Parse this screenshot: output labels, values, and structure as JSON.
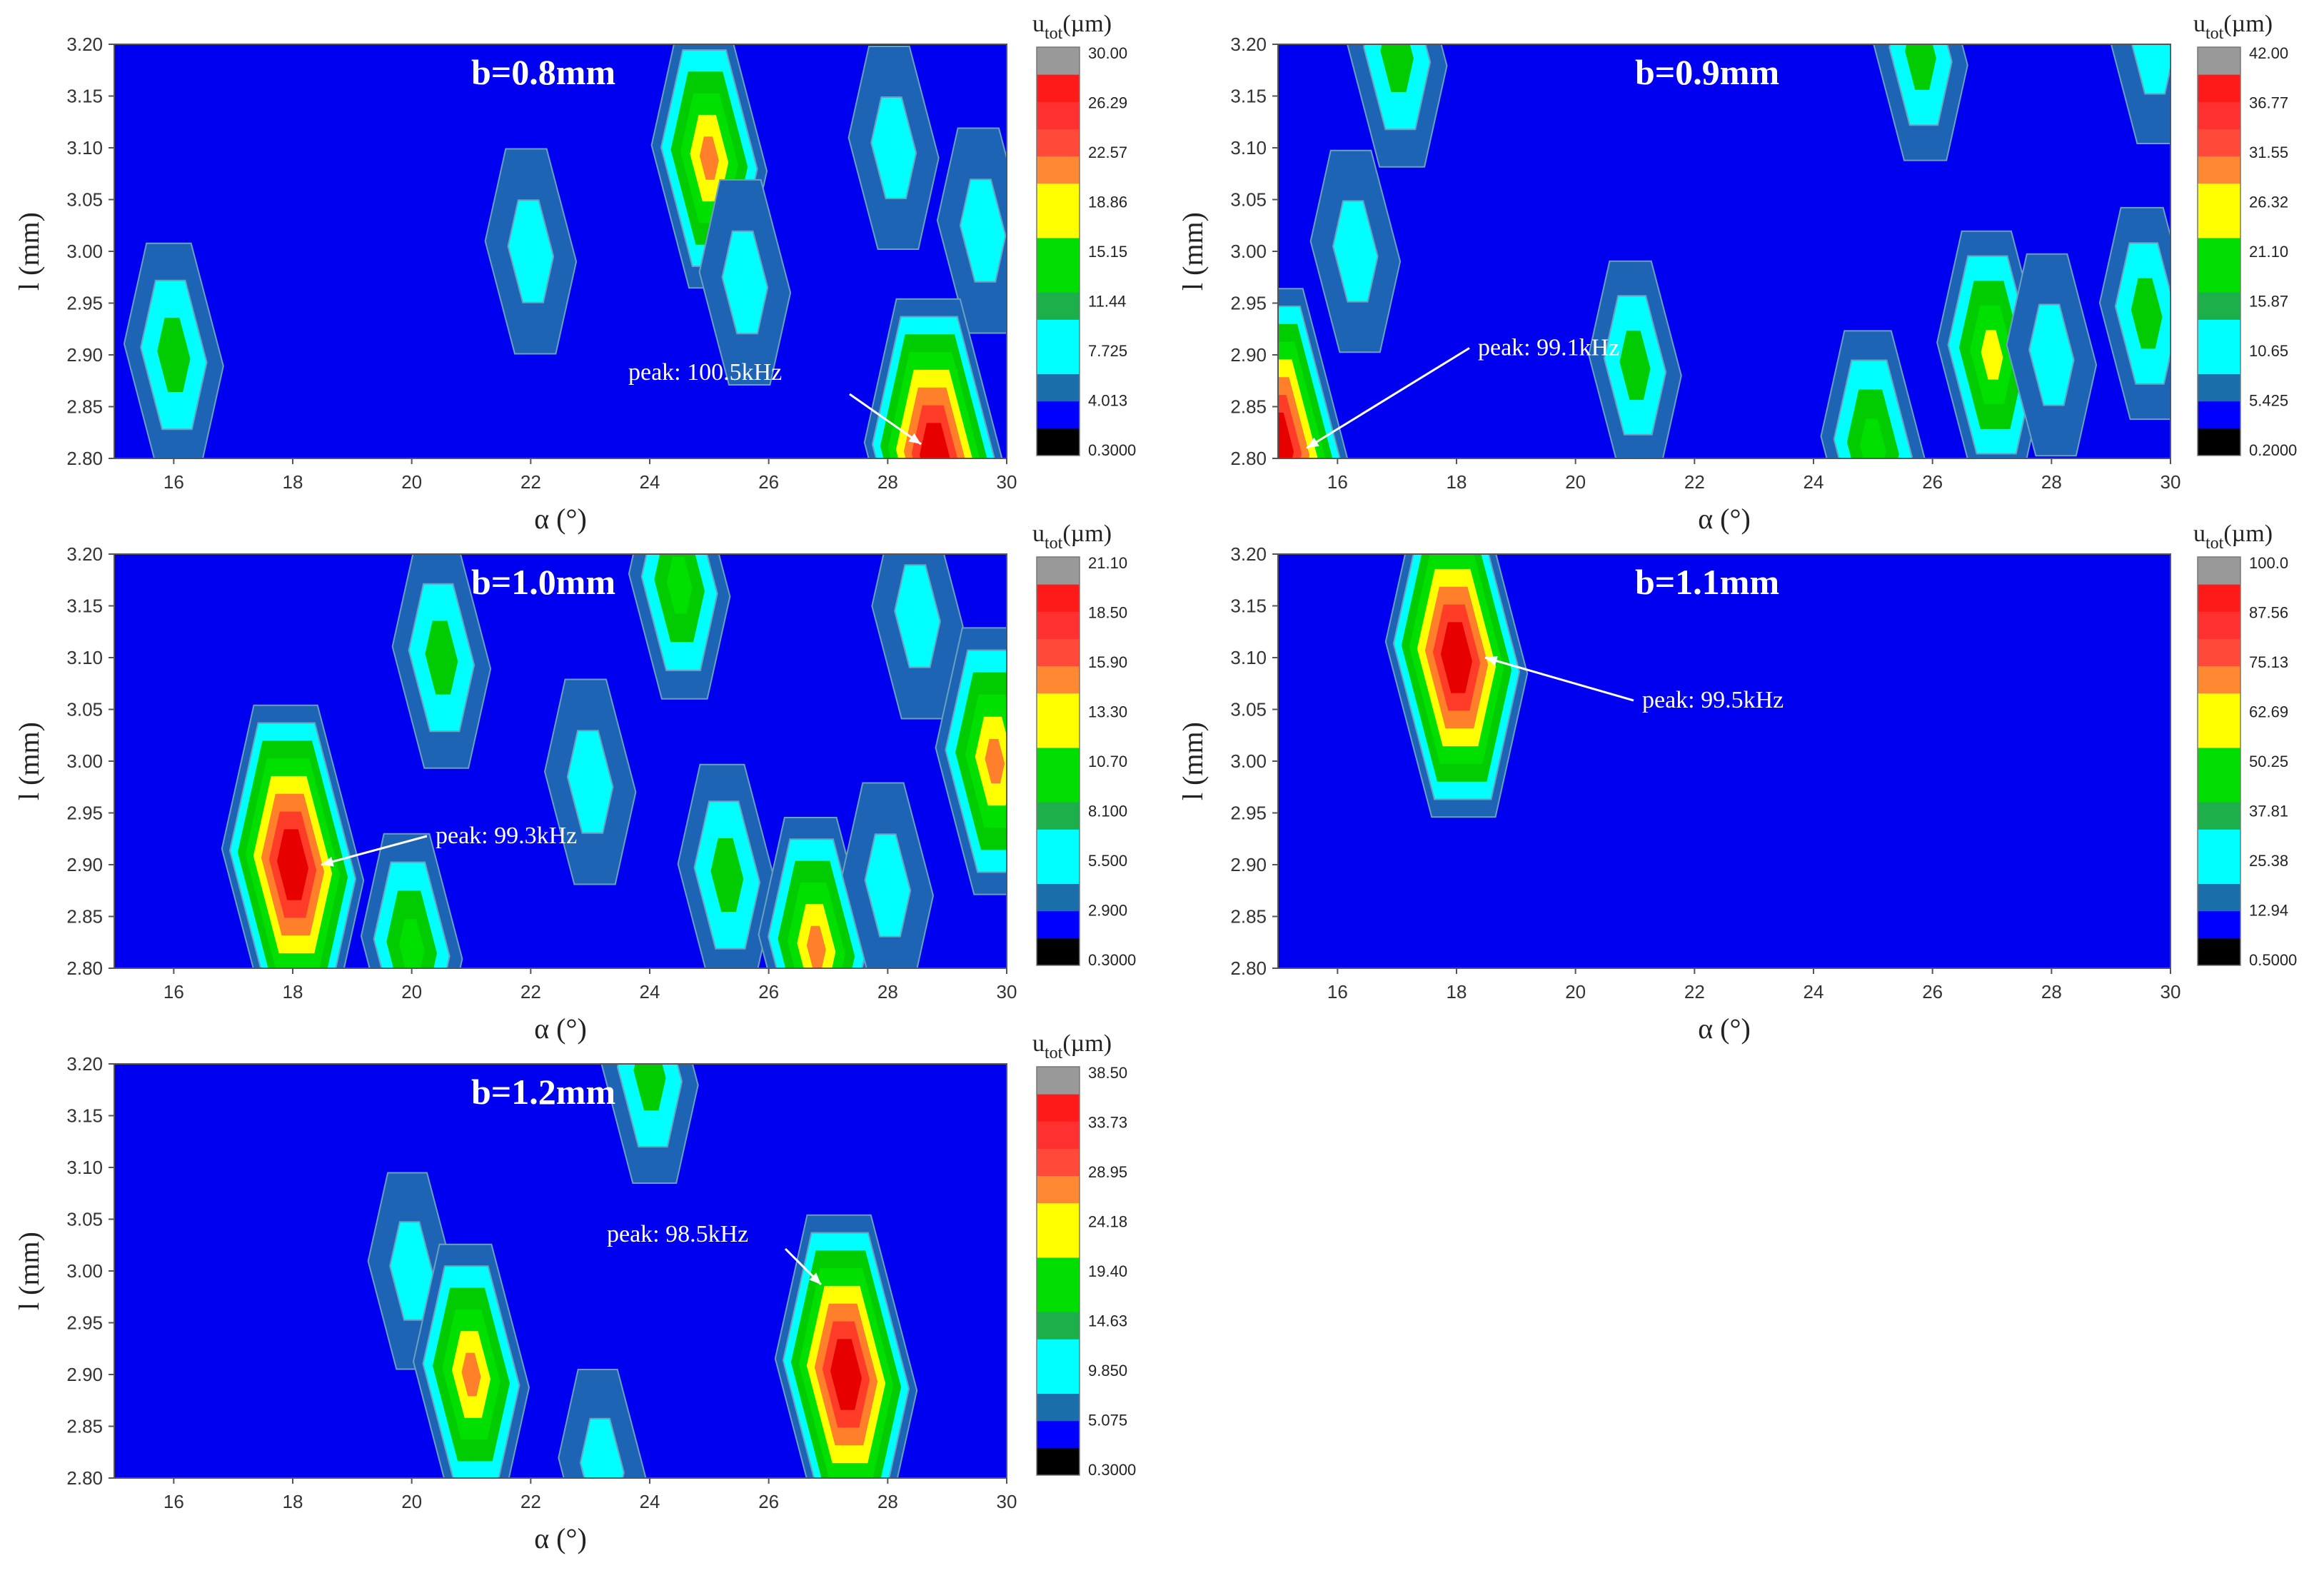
{
  "chart_data": [
    {
      "type": "heatmap",
      "title": "b=0.8mm",
      "xlabel": "α (°)",
      "ylabel": "l (mm)",
      "xlim": [
        15,
        30
      ],
      "ylim": [
        2.8,
        3.2
      ],
      "xticks": [
        "16",
        "18",
        "20",
        "22",
        "24",
        "26",
        "28",
        "30"
      ],
      "yticks": [
        "2.80",
        "2.85",
        "2.90",
        "2.95",
        "3.00",
        "3.05",
        "3.10",
        "3.15",
        "3.20"
      ],
      "colorbar_title": "u_tot(µm)",
      "colorbar_ticks": [
        "30.00",
        "26.29",
        "22.57",
        "18.86",
        "15.15",
        "11.44",
        "7.725",
        "4.013",
        "0.3000"
      ],
      "annotation": {
        "text": "peak: 100.5kHz",
        "x": 28.8,
        "y": 2.8
      },
      "hotspots": [
        {
          "x": 16.0,
          "y": 2.9,
          "value": 9.0
        },
        {
          "x": 22.0,
          "y": 3.0,
          "value": 5.0
        },
        {
          "x": 25.0,
          "y": 3.09,
          "value": 17.0
        },
        {
          "x": 25.6,
          "y": 2.97,
          "value": 5.0
        },
        {
          "x": 28.1,
          "y": 3.1,
          "value": 4.5
        },
        {
          "x": 29.6,
          "y": 3.02,
          "value": 5.0
        },
        {
          "x": 28.8,
          "y": 2.8,
          "value": 30.0
        }
      ]
    },
    {
      "type": "heatmap",
      "title": "b=0.9mm",
      "xlabel": "α (°)",
      "ylabel": "l (mm)",
      "xlim": [
        15,
        30
      ],
      "ylim": [
        2.8,
        3.2
      ],
      "xticks": [
        "16",
        "18",
        "20",
        "22",
        "24",
        "26",
        "28",
        "30"
      ],
      "yticks": [
        "2.80",
        "2.85",
        "2.90",
        "2.95",
        "3.00",
        "3.05",
        "3.10",
        "3.15",
        "3.20"
      ],
      "colorbar_title": "u_tot(µm)",
      "colorbar_ticks": [
        "42.00",
        "36.77",
        "31.55",
        "26.32",
        "21.10",
        "15.87",
        "10.65",
        "5.425",
        "0.2000"
      ],
      "annotation": {
        "text": "peak: 99.1kHz",
        "x": 15.0,
        "y": 2.81
      },
      "hotspots": [
        {
          "x": 17.0,
          "y": 3.19,
          "value": 13.0
        },
        {
          "x": 25.8,
          "y": 3.19,
          "value": 9.0
        },
        {
          "x": 29.7,
          "y": 3.2,
          "value": 5.0
        },
        {
          "x": 16.3,
          "y": 3.0,
          "value": 6.0
        },
        {
          "x": 21.0,
          "y": 2.89,
          "value": 8.0
        },
        {
          "x": 25.0,
          "y": 2.81,
          "value": 16.0
        },
        {
          "x": 27.0,
          "y": 2.9,
          "value": 20.0
        },
        {
          "x": 28.0,
          "y": 2.9,
          "value": 6.0
        },
        {
          "x": 29.6,
          "y": 2.94,
          "value": 9.0
        },
        {
          "x": 15.0,
          "y": 2.81,
          "value": 42.0
        }
      ]
    },
    {
      "type": "heatmap",
      "title": "b=1.0mm",
      "xlabel": "α (°)",
      "ylabel": "l (mm)",
      "xlim": [
        15,
        30
      ],
      "ylim": [
        2.8,
        3.2
      ],
      "xticks": [
        "16",
        "18",
        "20",
        "22",
        "24",
        "26",
        "28",
        "30"
      ],
      "yticks": [
        "2.80",
        "2.85",
        "2.90",
        "2.95",
        "3.00",
        "3.05",
        "3.10",
        "3.15",
        "3.20"
      ],
      "colorbar_title": "u_tot(µm)",
      "colorbar_ticks": [
        "21.10",
        "18.50",
        "15.90",
        "13.30",
        "10.70",
        "8.100",
        "5.500",
        "2.900",
        "0.3000"
      ],
      "annotation": {
        "text": "peak: 99.3kHz",
        "x": 18.0,
        "y": 2.9
      },
      "hotspots": [
        {
          "x": 18.0,
          "y": 2.9,
          "value": 21.1
        },
        {
          "x": 20.5,
          "y": 3.1,
          "value": 6.0
        },
        {
          "x": 24.5,
          "y": 3.17,
          "value": 7.0
        },
        {
          "x": 28.5,
          "y": 3.14,
          "value": 3.5
        },
        {
          "x": 23.0,
          "y": 2.98,
          "value": 3.5
        },
        {
          "x": 20.0,
          "y": 2.82,
          "value": 7.0
        },
        {
          "x": 25.3,
          "y": 2.89,
          "value": 6.0
        },
        {
          "x": 26.8,
          "y": 2.82,
          "value": 12.0
        },
        {
          "x": 28.0,
          "y": 2.88,
          "value": 3.5
        },
        {
          "x": 29.8,
          "y": 3.0,
          "value": 13.0
        }
      ]
    },
    {
      "type": "heatmap",
      "title": "b=1.1mm",
      "xlabel": "α (°)",
      "ylabel": "l (mm)",
      "xlim": [
        15,
        30
      ],
      "ylim": [
        2.8,
        3.2
      ],
      "xticks": [
        "16",
        "18",
        "20",
        "22",
        "24",
        "26",
        "28",
        "30"
      ],
      "yticks": [
        "2.80",
        "2.85",
        "2.90",
        "2.95",
        "3.00",
        "3.05",
        "3.10",
        "3.15",
        "3.20"
      ],
      "colorbar_title": "u_tot(µm)",
      "colorbar_ticks": [
        "100.0",
        "87.56",
        "75.13",
        "62.69",
        "50.25",
        "37.81",
        "25.38",
        "12.94",
        "0.5000"
      ],
      "annotation": {
        "text": "peak: 99.5kHz",
        "x": 18.0,
        "y": 3.1
      },
      "hotspots": [
        {
          "x": 18.0,
          "y": 3.1,
          "value": 100.0
        }
      ]
    },
    {
      "type": "heatmap",
      "title": "b=1.2mm",
      "xlabel": "α (°)",
      "ylabel": "l (mm)",
      "xlim": [
        15,
        30
      ],
      "ylim": [
        2.8,
        3.2
      ],
      "xticks": [
        "16",
        "18",
        "20",
        "22",
        "24",
        "26",
        "28",
        "30"
      ],
      "yticks": [
        "2.80",
        "2.85",
        "2.90",
        "2.95",
        "3.00",
        "3.05",
        "3.10",
        "3.15",
        "3.20"
      ],
      "colorbar_title": "u_tot(µm)",
      "colorbar_ticks": [
        "38.50",
        "33.73",
        "28.95",
        "24.18",
        "19.40",
        "14.63",
        "9.850",
        "5.075",
        "0.3000"
      ],
      "annotation": {
        "text": "peak: 98.5kHz",
        "x": 27.0,
        "y": 2.98
      },
      "hotspots": [
        {
          "x": 24.0,
          "y": 3.19,
          "value": 10.0
        },
        {
          "x": 20.0,
          "y": 3.0,
          "value": 4.0
        },
        {
          "x": 21.0,
          "y": 2.9,
          "value": 22.0
        },
        {
          "x": 23.2,
          "y": 2.81,
          "value": 4.0
        },
        {
          "x": 27.3,
          "y": 2.9,
          "value": 38.5
        }
      ]
    }
  ],
  "colors": {
    "background": "#0000f0",
    "levels": [
      "#0000f0",
      "#1e64b4",
      "#00ffff",
      "#00cc00",
      "#00e000",
      "#ffff00",
      "#ff7f2a",
      "#ff3c28",
      "#e60000"
    ],
    "colorbar": [
      "#000000",
      "#0000ff",
      "#1a6eaa",
      "#00ffff",
      "#00ffff",
      "#1db04a",
      "#00dd00",
      "#00dd00",
      "#ffff00",
      "#ffff00",
      "#ff8833",
      "#ff4a3a",
      "#ff3030",
      "#ff1a1a",
      "#999999"
    ]
  }
}
